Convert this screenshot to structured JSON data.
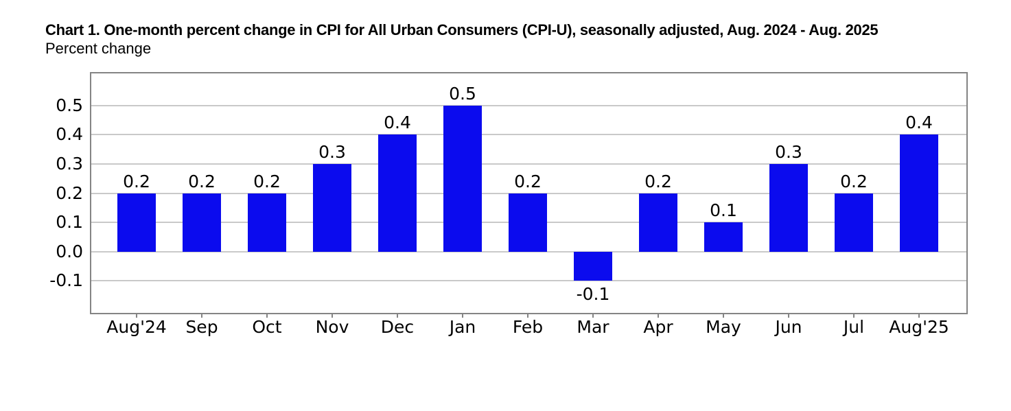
{
  "header": {
    "title": "Chart 1. One-month percent change in CPI for All Urban Consumers (CPI-U), seasonally adjusted, Aug. 2024 - Aug. 2025",
    "subtitle": "Percent change"
  },
  "chart_data": {
    "type": "bar",
    "title": "Chart 1. One-month percent change in CPI for All Urban Consumers (CPI-U), seasonally adjusted, Aug. 2024 - Aug. 2025",
    "ylabel": "Percent change",
    "xlabel": "",
    "categories": [
      "Aug'24",
      "Sep",
      "Oct",
      "Nov",
      "Dec",
      "Jan",
      "Feb",
      "Mar",
      "Apr",
      "May",
      "Jun",
      "Jul",
      "Aug'25"
    ],
    "values": [
      0.2,
      0.2,
      0.2,
      0.3,
      0.4,
      0.5,
      0.2,
      -0.1,
      0.2,
      0.1,
      0.3,
      0.2,
      0.4
    ],
    "bar_labels": [
      "0.2",
      "0.2",
      "0.2",
      "0.3",
      "0.4",
      "0.5",
      "0.2",
      "-0.1",
      "0.2",
      "0.1",
      "0.3",
      "0.2",
      "0.4"
    ],
    "yticks": [
      0.5,
      0.4,
      0.3,
      0.2,
      0.1,
      0.0,
      -0.1
    ],
    "ytick_labels": [
      "0.5",
      "0.4",
      "0.3",
      "0.2",
      "0.1",
      "0.0",
      "-0.1"
    ],
    "ylim": [
      -0.21,
      0.61
    ],
    "grid": true,
    "legend": "none",
    "colors": {
      "bar": "#0b0bee",
      "grid": "#c9c9c9",
      "plot_border": "#848484",
      "tick": "#848484",
      "text": "#000000",
      "background": "#ffffff"
    }
  }
}
